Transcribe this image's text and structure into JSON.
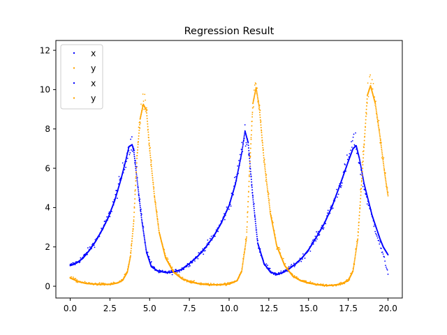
{
  "chart_data": {
    "type": "scatter",
    "title": "Regression Result",
    "xlabel": "",
    "ylabel": "",
    "xlim": [
      -0.9,
      20.9
    ],
    "ylim": [
      -0.6,
      12.5
    ],
    "xticks": [
      0.0,
      2.5,
      5.0,
      7.5,
      10.0,
      12.5,
      15.0,
      17.5,
      20.0
    ],
    "xtick_labels": [
      "0.0",
      "2.5",
      "5.0",
      "7.5",
      "10.0",
      "12.5",
      "15.0",
      "17.5",
      "20.0"
    ],
    "yticks": [
      0,
      2,
      4,
      6,
      8,
      10,
      12
    ],
    "ytick_labels": [
      "0",
      "2",
      "4",
      "6",
      "8",
      "10",
      "12"
    ],
    "grid": false,
    "legend": {
      "position": "top-left",
      "entries": [
        {
          "label": "x",
          "color": "#0000ff"
        },
        {
          "label": "y",
          "color": "#ffa500"
        },
        {
          "label": "x",
          "color": "#0000ff"
        },
        {
          "label": "y",
          "color": "#ffa500"
        }
      ]
    },
    "series": [
      {
        "name": "x",
        "color": "#0000ff",
        "role": "noisy observations",
        "x": [
          0.0,
          0.4,
          0.8,
          1.2,
          1.6,
          2.0,
          2.4,
          2.8,
          3.2,
          3.5,
          3.8,
          4.0,
          4.2,
          4.5,
          4.8,
          5.2,
          5.6,
          6.0,
          6.5,
          7.0,
          7.5,
          8.0,
          8.5,
          9.0,
          9.5,
          10.0,
          10.4,
          10.8,
          11.0,
          11.2,
          11.5,
          11.8,
          12.2,
          12.6,
          13.0,
          13.4,
          13.8,
          14.2,
          14.6,
          15.0,
          15.5,
          16.0,
          16.5,
          17.0,
          17.5,
          17.8,
          18.0,
          18.2,
          18.5,
          19.0,
          19.5,
          20.0
        ],
        "y": [
          1.05,
          1.2,
          1.45,
          1.85,
          2.3,
          2.85,
          3.5,
          4.4,
          5.5,
          6.5,
          7.3,
          7.0,
          5.6,
          3.5,
          1.8,
          0.95,
          0.72,
          0.7,
          0.72,
          0.85,
          1.15,
          1.5,
          1.95,
          2.5,
          3.2,
          4.1,
          5.3,
          6.9,
          7.8,
          7.2,
          4.5,
          2.2,
          1.2,
          0.75,
          0.6,
          0.7,
          0.9,
          1.15,
          1.45,
          1.85,
          2.5,
          3.2,
          4.1,
          5.2,
          6.4,
          7.4,
          7.2,
          6.3,
          5.0,
          3.5,
          2.1,
          0.7
        ]
      },
      {
        "name": "y",
        "color": "#ffa500",
        "role": "noisy observations",
        "x": [
          0.0,
          0.5,
          1.0,
          1.5,
          2.0,
          2.5,
          3.0,
          3.3,
          3.6,
          3.8,
          4.0,
          4.2,
          4.4,
          4.6,
          4.8,
          5.0,
          5.3,
          5.6,
          6.0,
          6.5,
          7.0,
          7.5,
          8.0,
          8.5,
          9.0,
          9.5,
          10.0,
          10.5,
          10.8,
          11.1,
          11.3,
          11.5,
          11.7,
          11.9,
          12.2,
          12.6,
          13.0,
          13.5,
          14.0,
          14.5,
          15.0,
          15.5,
          16.0,
          16.5,
          17.0,
          17.5,
          17.8,
          18.1,
          18.4,
          18.7,
          18.9,
          19.2,
          19.5,
          19.8,
          20.0
        ],
        "y": [
          0.45,
          0.25,
          0.15,
          0.12,
          0.1,
          0.1,
          0.18,
          0.3,
          0.75,
          1.6,
          3.4,
          6.6,
          8.6,
          9.3,
          9.0,
          7.0,
          4.6,
          2.8,
          1.5,
          0.75,
          0.42,
          0.25,
          0.15,
          0.1,
          0.08,
          0.1,
          0.12,
          0.3,
          0.8,
          2.6,
          6.2,
          9.4,
          10.2,
          9.2,
          6.5,
          3.8,
          2.1,
          1.1,
          0.55,
          0.3,
          0.18,
          0.1,
          0.05,
          0.05,
          0.12,
          0.3,
          0.8,
          2.5,
          6.2,
          9.8,
          10.4,
          9.5,
          7.7,
          5.8,
          4.7
        ]
      },
      {
        "name": "x",
        "color": "#0000ff",
        "role": "fitted curve",
        "x": [
          0.0,
          0.4,
          0.8,
          1.2,
          1.6,
          2.0,
          2.4,
          2.8,
          3.2,
          3.5,
          3.7,
          3.9,
          4.0,
          4.2,
          4.5,
          4.8,
          5.1,
          5.5,
          6.0,
          6.5,
          7.0,
          7.5,
          8.0,
          8.5,
          9.0,
          9.5,
          10.0,
          10.4,
          10.8,
          11.0,
          11.2,
          11.5,
          11.8,
          12.2,
          12.6,
          13.0,
          13.4,
          13.8,
          14.2,
          14.6,
          15.0,
          15.5,
          16.0,
          16.5,
          17.0,
          17.5,
          17.8,
          18.0,
          18.2,
          18.5,
          19.0,
          19.5,
          19.7,
          20.0
        ],
        "y": [
          1.05,
          1.18,
          1.42,
          1.82,
          2.28,
          2.85,
          3.5,
          4.35,
          5.45,
          6.4,
          7.1,
          7.2,
          6.9,
          5.5,
          3.4,
          1.75,
          1.0,
          0.78,
          0.7,
          0.72,
          0.85,
          1.15,
          1.5,
          1.95,
          2.5,
          3.2,
          4.1,
          5.2,
          6.8,
          7.9,
          7.3,
          4.5,
          2.2,
          1.15,
          0.72,
          0.6,
          0.7,
          0.9,
          1.15,
          1.45,
          1.85,
          2.5,
          3.2,
          4.1,
          5.2,
          6.35,
          7.0,
          7.15,
          6.5,
          5.2,
          3.6,
          2.4,
          2.0,
          1.6
        ]
      },
      {
        "name": "y",
        "color": "#ffa500",
        "role": "fitted curve",
        "x": [
          0.0,
          0.5,
          1.0,
          1.5,
          2.0,
          2.5,
          3.0,
          3.3,
          3.6,
          3.8,
          4.0,
          4.2,
          4.4,
          4.6,
          4.8,
          5.0,
          5.3,
          5.6,
          6.0,
          6.5,
          7.0,
          7.5,
          8.0,
          8.5,
          9.0,
          9.5,
          10.0,
          10.5,
          10.8,
          11.1,
          11.3,
          11.5,
          11.7,
          11.9,
          12.2,
          12.6,
          13.0,
          13.5,
          14.0,
          14.5,
          15.0,
          15.5,
          16.0,
          16.5,
          17.0,
          17.5,
          17.8,
          18.1,
          18.4,
          18.7,
          18.9,
          19.2,
          19.5,
          19.8,
          20.0
        ],
        "y": [
          0.42,
          0.24,
          0.14,
          0.11,
          0.09,
          0.09,
          0.17,
          0.3,
          0.72,
          1.55,
          3.3,
          6.5,
          8.5,
          9.25,
          8.95,
          7.0,
          4.6,
          2.75,
          1.45,
          0.72,
          0.4,
          0.24,
          0.14,
          0.09,
          0.07,
          0.08,
          0.11,
          0.28,
          0.78,
          2.5,
          6.1,
          9.3,
          10.1,
          9.1,
          6.4,
          3.7,
          2.05,
          1.05,
          0.52,
          0.28,
          0.16,
          0.09,
          0.04,
          0.04,
          0.11,
          0.28,
          0.78,
          2.4,
          6.0,
          9.7,
          10.2,
          9.3,
          7.6,
          5.7,
          4.6
        ]
      }
    ]
  }
}
